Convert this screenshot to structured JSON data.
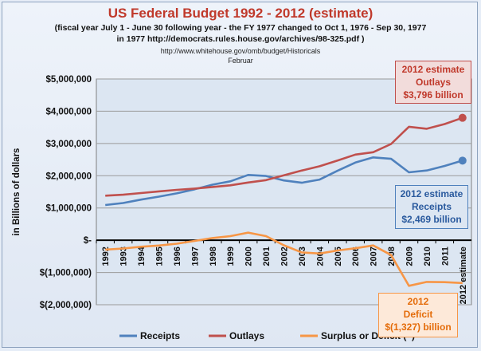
{
  "header": {
    "title": "US Federal Budget 1992 - 2012 (estimate)",
    "subtitle_1": "(fiscal year July 1 - June 30 following year - the FY 1977 changed to Oct 1, 1976 - Sep 30, 1977",
    "subtitle_2": "in 1977 http://democrats.rules.house.gov/archives/98-325.pdf )",
    "source_1": "http://www.whitehouse.gov/omb/budget/Historicals",
    "source_2": "Februar"
  },
  "callouts": {
    "outlays": {
      "line1": "2012 estimate",
      "line2": "Outlays",
      "line3": "$3,796 billion"
    },
    "receipts": {
      "line1": "2012 estimate",
      "line2": "Receipts",
      "line3": "$2,469 billion"
    },
    "deficit": {
      "line1": "2012",
      "line2": "Deficit",
      "line3": "$(1,327) billion"
    }
  },
  "colors": {
    "receipts": "#4f81bd",
    "outlays": "#c0504d",
    "deficit": "#f79646",
    "plot_bg": "#dce6f2"
  },
  "chart_data": {
    "type": "line",
    "title": "US Federal Budget 1992 - 2012 (estimate)",
    "ylabel": "in Billions of dollars",
    "ylim": [
      -2000000,
      5000000
    ],
    "yticks": [
      5000000,
      4000000,
      3000000,
      2000000,
      1000000,
      0,
      -1000000,
      -2000000
    ],
    "ytick_labels": [
      "$5,000,000",
      "$4,000,000",
      "$3,000,000",
      "$2,000,000",
      "$1,000,000",
      "$-",
      "$(1,000,000)",
      "$(2,000,000)"
    ],
    "categories": [
      "1992",
      "1993",
      "1994",
      "1995",
      "1996",
      "1997",
      "1998",
      "1999",
      "2000",
      "2001",
      "2002",
      "2003",
      "2004",
      "2005",
      "2006",
      "2007",
      "2008",
      "2009",
      "2010",
      "2011",
      "2012 estimate"
    ],
    "grid": true,
    "legend_position": "bottom",
    "series": [
      {
        "name": "Receipts",
        "color": "#4f81bd",
        "values": [
          1091000,
          1154000,
          1259000,
          1352000,
          1453000,
          1579000,
          1722000,
          1827000,
          2025000,
          1991000,
          1853000,
          1782000,
          1880000,
          2153000,
          2407000,
          2568000,
          2524000,
          2105000,
          2163000,
          2303000,
          2469000
        ]
      },
      {
        "name": "Outlays",
        "color": "#c0504d",
        "values": [
          1382000,
          1410000,
          1462000,
          1516000,
          1561000,
          1601000,
          1652000,
          1702000,
          1789000,
          1863000,
          2011000,
          2160000,
          2293000,
          2472000,
          2655000,
          2729000,
          2983000,
          3518000,
          3456000,
          3603000,
          3796000
        ]
      },
      {
        "name": "Surplus or Deficit (–)",
        "color": "#f79646",
        "values": [
          -290000,
          -255000,
          -203000,
          -164000,
          -107000,
          -22000,
          69000,
          126000,
          236000,
          128000,
          -158000,
          -378000,
          -413000,
          -318000,
          -248000,
          -161000,
          -459000,
          -1413000,
          -1293000,
          -1300000,
          -1327000
        ]
      }
    ]
  }
}
